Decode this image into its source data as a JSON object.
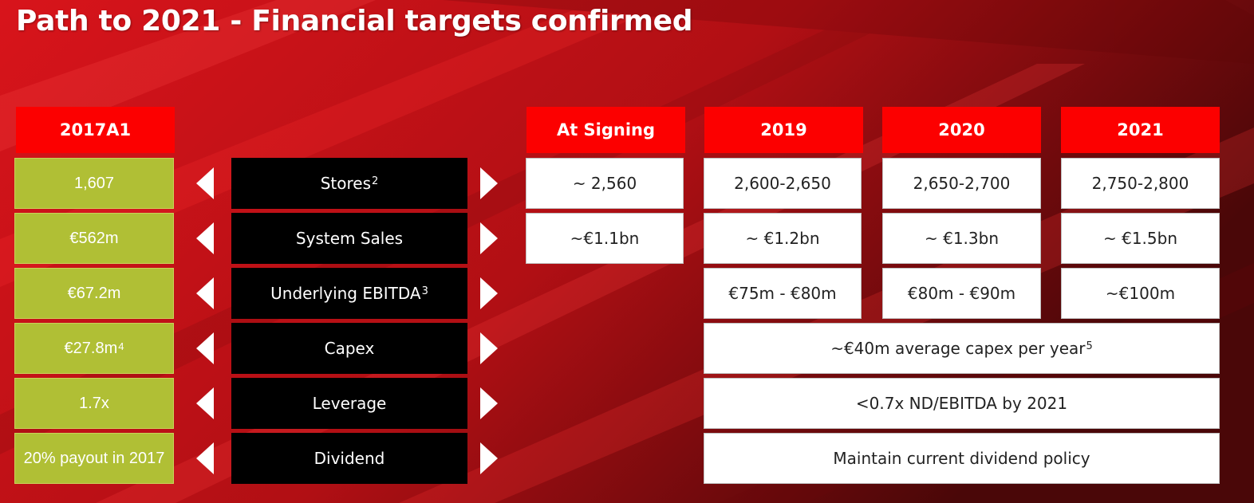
{
  "title": "Path to 2021 - Financial targets confirmed",
  "colors": {
    "header_red": "#fc0000",
    "green": "#b0bf35",
    "black": "#000000",
    "white": "#ffffff"
  },
  "headers": {
    "actual": "2017A1",
    "signing": "At Signing",
    "y2019": "2019",
    "y2020": "2020",
    "y2021": "2021"
  },
  "rows": [
    {
      "actual": "1,607",
      "label": "Stores",
      "label_sup": "2"
    },
    {
      "actual": "€562m",
      "label": "System Sales",
      "label_sup": ""
    },
    {
      "actual": "€67.2m",
      "label": "Underlying EBITDA",
      "label_sup": "3"
    },
    {
      "actual": "€27.8m",
      "actual_sup": "4",
      "label": "Capex",
      "label_sup": ""
    },
    {
      "actual": "1.7x",
      "label": "Leverage",
      "label_sup": ""
    },
    {
      "actual": "20% payout in 2017",
      "label": "Dividend",
      "label_sup": ""
    }
  ],
  "targets": {
    "stores": {
      "signing": "~ 2,560",
      "y2019": "2,600-2,650",
      "y2020": "2,650-2,700",
      "y2021": "2,750-2,800"
    },
    "sales": {
      "signing": "~€1.1bn",
      "y2019": "~ €1.2bn",
      "y2020": "~ €1.3bn",
      "y2021": "~ €1.5bn"
    },
    "ebitda": {
      "y2019": "€75m - €80m",
      "y2020": "€80m - €90m",
      "y2021": "~€100m"
    },
    "capex": {
      "text": "~€40m average capex per year",
      "sup": "5"
    },
    "leverage": {
      "text": "<0.7x ND/EBITDA by 2021"
    },
    "dividend": {
      "text": "Maintain current dividend policy"
    }
  }
}
